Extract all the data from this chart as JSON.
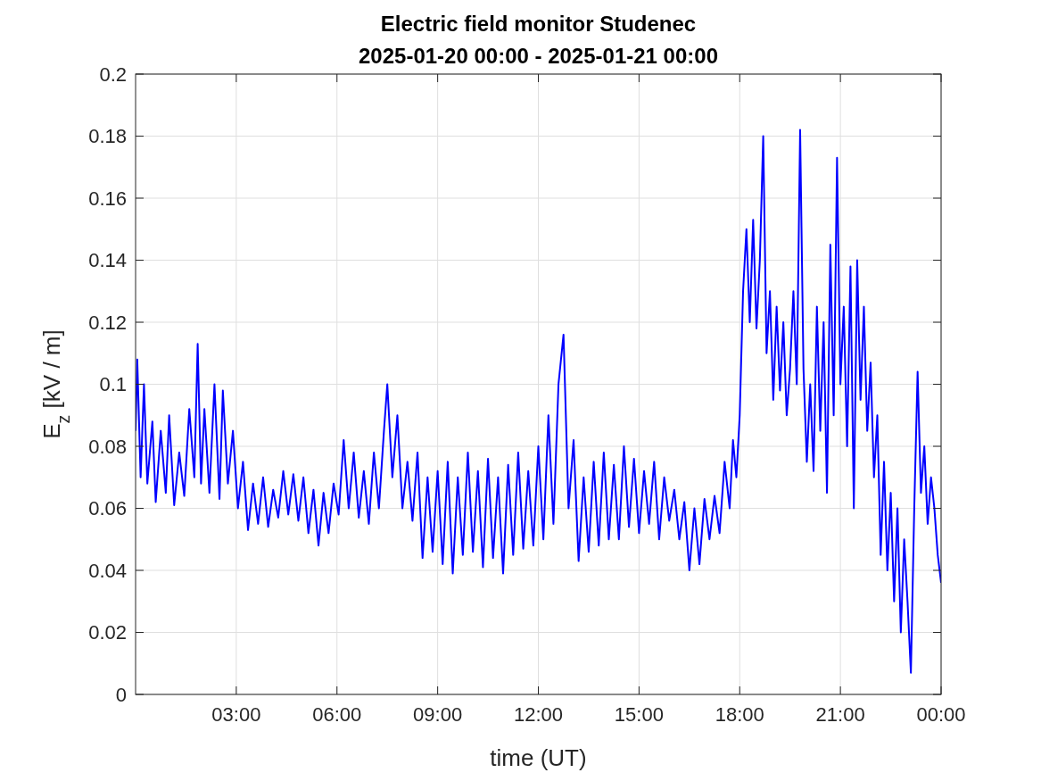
{
  "chart_data": {
    "type": "line",
    "title": "Electric field monitor Studenec",
    "subtitle": "2025-01-20 00:00 - 2025-01-21 00:00",
    "xlabel": "time (UT)",
    "ylabel": "E$_{z}$ [kV / m]",
    "xlim": [
      0,
      24
    ],
    "xticks": [
      {
        "value": 3,
        "label": "03:00"
      },
      {
        "value": 6,
        "label": "06:00"
      },
      {
        "value": 9,
        "label": "09:00"
      },
      {
        "value": 12,
        "label": "12:00"
      },
      {
        "value": 15,
        "label": "15:00"
      },
      {
        "value": 18,
        "label": "18:00"
      },
      {
        "value": 21,
        "label": "21:00"
      },
      {
        "value": 24,
        "label": "00:00"
      }
    ],
    "ylim": [
      0,
      0.2
    ],
    "yticks": [
      0,
      0.02,
      0.04,
      0.06,
      0.08,
      0.1,
      0.12,
      0.14,
      0.16,
      0.18,
      0.2
    ],
    "grid": true,
    "marker": "none",
    "line_style": "solid",
    "series": [
      {
        "color": "#0000ff",
        "x": [
          0,
          0.05,
          0.15,
          0.25,
          0.35,
          0.5,
          0.6,
          0.75,
          0.9,
          1.0,
          1.15,
          1.3,
          1.45,
          1.6,
          1.75,
          1.85,
          1.95,
          2.05,
          2.2,
          2.35,
          2.5,
          2.6,
          2.75,
          2.9,
          3.05,
          3.2,
          3.35,
          3.5,
          3.65,
          3.8,
          3.95,
          4.1,
          4.25,
          4.4,
          4.55,
          4.7,
          4.85,
          5.0,
          5.15,
          5.3,
          5.45,
          5.6,
          5.75,
          5.9,
          6.05,
          6.2,
          6.35,
          6.5,
          6.65,
          6.8,
          6.95,
          7.1,
          7.25,
          7.4,
          7.5,
          7.65,
          7.8,
          7.95,
          8.1,
          8.25,
          8.4,
          8.55,
          8.7,
          8.85,
          9.0,
          9.15,
          9.3,
          9.45,
          9.6,
          9.75,
          9.9,
          10.05,
          10.2,
          10.35,
          10.5,
          10.65,
          10.8,
          10.95,
          11.1,
          11.25,
          11.4,
          11.55,
          11.7,
          11.85,
          12.0,
          12.15,
          12.3,
          12.45,
          12.6,
          12.75,
          12.9,
          13.05,
          13.2,
          13.35,
          13.5,
          13.65,
          13.8,
          13.95,
          14.1,
          14.25,
          14.4,
          14.55,
          14.7,
          14.85,
          15.0,
          15.15,
          15.3,
          15.45,
          15.6,
          15.75,
          15.9,
          16.05,
          16.2,
          16.35,
          16.5,
          16.65,
          16.8,
          16.95,
          17.1,
          17.25,
          17.4,
          17.55,
          17.7,
          17.8,
          17.9,
          18.0,
          18.1,
          18.2,
          18.3,
          18.4,
          18.5,
          18.6,
          18.7,
          18.8,
          18.9,
          19.0,
          19.1,
          19.2,
          19.3,
          19.4,
          19.5,
          19.6,
          19.7,
          19.8,
          19.9,
          20.0,
          20.1,
          20.2,
          20.3,
          20.4,
          20.5,
          20.6,
          20.7,
          20.8,
          20.9,
          21.0,
          21.1,
          21.2,
          21.3,
          21.4,
          21.5,
          21.6,
          21.7,
          21.8,
          21.9,
          22.0,
          22.1,
          22.2,
          22.3,
          22.4,
          22.5,
          22.6,
          22.7,
          22.8,
          22.9,
          23.0,
          23.1,
          23.2,
          23.3,
          23.4,
          23.5,
          23.6,
          23.7,
          23.8,
          23.9,
          24.0
        ],
        "values": [
          0.085,
          0.108,
          0.07,
          0.1,
          0.068,
          0.088,
          0.062,
          0.085,
          0.065,
          0.09,
          0.061,
          0.078,
          0.064,
          0.092,
          0.07,
          0.113,
          0.068,
          0.092,
          0.065,
          0.1,
          0.063,
          0.098,
          0.068,
          0.085,
          0.06,
          0.075,
          0.053,
          0.068,
          0.055,
          0.07,
          0.054,
          0.066,
          0.057,
          0.072,
          0.058,
          0.071,
          0.056,
          0.07,
          0.052,
          0.066,
          0.048,
          0.065,
          0.052,
          0.068,
          0.058,
          0.082,
          0.06,
          0.078,
          0.057,
          0.072,
          0.055,
          0.078,
          0.06,
          0.085,
          0.1,
          0.07,
          0.09,
          0.06,
          0.075,
          0.056,
          0.078,
          0.044,
          0.07,
          0.046,
          0.072,
          0.042,
          0.075,
          0.039,
          0.07,
          0.045,
          0.078,
          0.046,
          0.072,
          0.041,
          0.076,
          0.044,
          0.07,
          0.039,
          0.074,
          0.045,
          0.078,
          0.047,
          0.072,
          0.048,
          0.08,
          0.05,
          0.09,
          0.055,
          0.1,
          0.116,
          0.06,
          0.082,
          0.043,
          0.07,
          0.046,
          0.075,
          0.048,
          0.078,
          0.05,
          0.074,
          0.05,
          0.08,
          0.054,
          0.076,
          0.052,
          0.072,
          0.055,
          0.075,
          0.05,
          0.07,
          0.056,
          0.066,
          0.05,
          0.062,
          0.04,
          0.06,
          0.042,
          0.063,
          0.05,
          0.064,
          0.052,
          0.075,
          0.06,
          0.082,
          0.07,
          0.09,
          0.13,
          0.15,
          0.12,
          0.153,
          0.118,
          0.14,
          0.18,
          0.11,
          0.13,
          0.095,
          0.125,
          0.098,
          0.12,
          0.09,
          0.105,
          0.13,
          0.1,
          0.182,
          0.105,
          0.075,
          0.1,
          0.072,
          0.125,
          0.085,
          0.12,
          0.065,
          0.145,
          0.09,
          0.173,
          0.1,
          0.125,
          0.08,
          0.138,
          0.06,
          0.14,
          0.095,
          0.125,
          0.085,
          0.107,
          0.07,
          0.09,
          0.045,
          0.075,
          0.04,
          0.065,
          0.03,
          0.06,
          0.02,
          0.05,
          0.03,
          0.007,
          0.06,
          0.104,
          0.065,
          0.08,
          0.055,
          0.07,
          0.06,
          0.045,
          0.036
        ]
      }
    ]
  }
}
